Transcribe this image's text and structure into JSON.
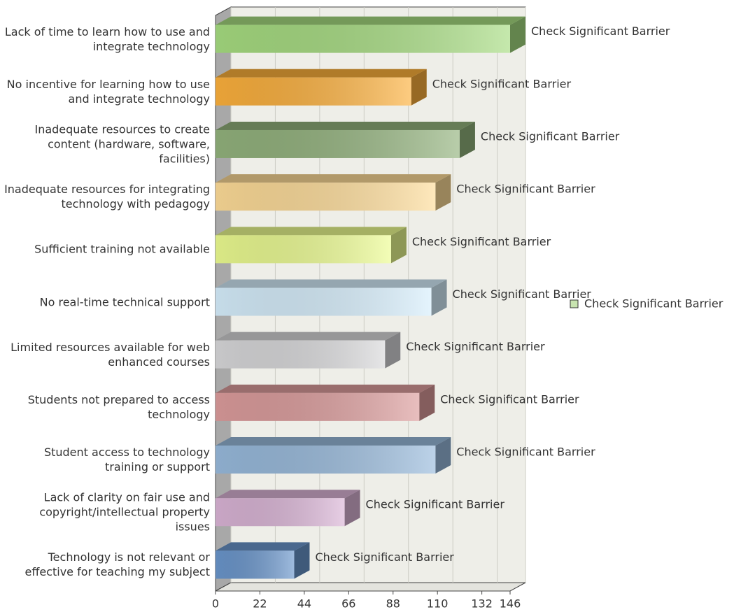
{
  "chart_data": {
    "type": "bar3d-horizontal",
    "categories": [
      "Lack of time to learn how to use and integrate technology",
      "No incentive for learning how to use and integrate technology",
      "Inadequate resources to create content (hardware, software, facilities)",
      "Inadequate resources for integrating technology with pedagogy",
      "Sufficient training not available",
      "No real-time technical support",
      "Limited resources available for web enhanced courses",
      "Students not prepared to access technology",
      "Student access to technology training or support",
      "Lack of clarity on fair use and copyright/intellectual property issues",
      "Technology is not relevant or effective for teaching my subject"
    ],
    "series": [
      {
        "name": "Check Significant Barrier",
        "color": "#c8e4b0",
        "values": [
          146,
          97,
          121,
          109,
          87,
          107,
          84,
          101,
          109,
          64,
          39
        ],
        "colors": [
          "#a6dc80",
          "#fcb03c",
          "#92b27c",
          "#fedc98",
          "#ecfc90",
          "#d6eefc",
          "#d8d8da",
          "#dc9c9c",
          "#98badc",
          "#dab4d6",
          "#6a96cc"
        ]
      }
    ],
    "xlim": [
      0,
      146
    ],
    "xticks": [
      0,
      22,
      44,
      66,
      88,
      110,
      132,
      146
    ],
    "grid": true,
    "legend": "right"
  }
}
